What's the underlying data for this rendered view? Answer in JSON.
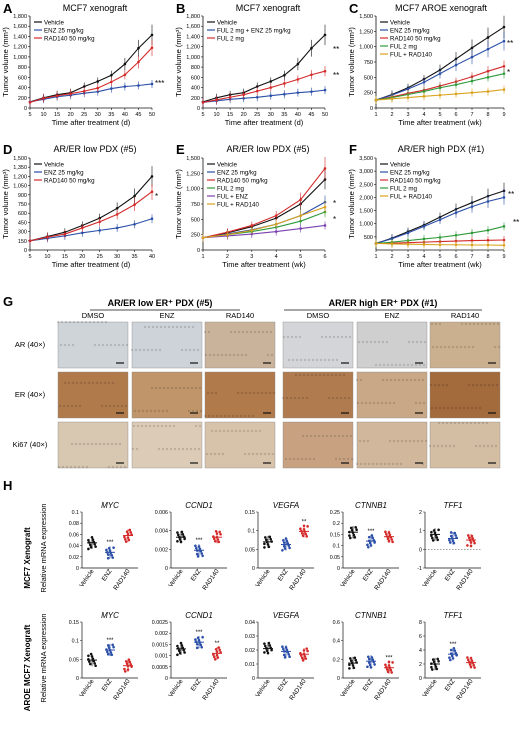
{
  "panels": {
    "A": {
      "letter": "A",
      "title": "MCF7 xenograft",
      "xlabel": "Time after treatment (d)",
      "ylabel": "Tumor volume (mm³)",
      "sig": "***"
    },
    "B": {
      "letter": "B",
      "title": "MCF7 xenograft",
      "xlabel": "Time after treatment (d)",
      "ylabel": "Tumor volume (mm³)",
      "sig_top": "**",
      "sig_bottom": "**"
    },
    "C": {
      "letter": "C",
      "title": "MCF7 AROE xenograft",
      "xlabel": "Time after treatment (wk)",
      "ylabel": "Tumor volume (mm³)",
      "sig_top": "**",
      "sig_mid": "*"
    },
    "D": {
      "letter": "D",
      "title": "AR/ER low PDX (#5)",
      "xlabel": "Time after treatment (d)",
      "ylabel": "Tumor volume (mm³)",
      "sig": "*"
    },
    "E": {
      "letter": "E",
      "title": "AR/ER low PDX (#5)",
      "xlabel": "Time after treatment (wk)",
      "ylabel": "Tumor volume (mm³)",
      "sig_top": "*",
      "sig_bottom": "*"
    },
    "F": {
      "letter": "F",
      "title": "AR/ER high PDX (#1)",
      "xlabel": "Time after treatment (wk)",
      "ylabel": "Tumor volume (mm³)",
      "sig_top": "**",
      "sig_bottom": "**"
    },
    "G": {
      "letter": "G",
      "group_left": "AR/ER low ER⁺ PDX (#5)",
      "group_right": "AR/ER high ER⁺ PDX (#1)",
      "columns": [
        "DMSO",
        "ENZ",
        "RAD140",
        "DMSO",
        "ENZ",
        "RAD140"
      ],
      "rows": [
        "AR (40×)",
        "ER (40×)",
        "Ki67 (40×)"
      ]
    },
    "H": {
      "letter": "H",
      "row_top": "MCF7 Xenograft",
      "row_bottom": "AROE MCF7 Xenograft",
      "ylabel": "Relative mRNA expression",
      "groups": [
        "Vehicle",
        "ENZ",
        "RAD140"
      ]
    }
  },
  "chart_data": [
    {
      "id": "A",
      "type": "line",
      "title": "MCF7 xenograft",
      "xlabel": "Time after treatment (d)",
      "ylabel": "Tumor volume (mm³)",
      "x": [
        5,
        10,
        15,
        20,
        25,
        30,
        35,
        40,
        45,
        50
      ],
      "xlim": [
        5,
        50
      ],
      "ylim": [
        0,
        1800
      ],
      "yticks": [
        0,
        200,
        400,
        600,
        800,
        1000,
        1200,
        1400,
        1600,
        1800
      ],
      "series": [
        {
          "name": "Vehicle",
          "color": "#111111",
          "values": [
            120,
            200,
            260,
            300,
            420,
            520,
            640,
            860,
            1170,
            1430
          ]
        },
        {
          "name": "ENZ 25 mg/kg",
          "color": "#2b4fa8",
          "values": [
            120,
            170,
            220,
            250,
            290,
            320,
            380,
            420,
            440,
            470
          ]
        },
        {
          "name": "RAD140 50 mg/kg",
          "color": "#d42a2a",
          "values": [
            110,
            190,
            240,
            280,
            330,
            390,
            510,
            650,
            900,
            1180
          ]
        }
      ]
    },
    {
      "id": "B",
      "type": "line",
      "title": "MCF7 xenograft",
      "xlabel": "Time after treatment (d)",
      "ylabel": "Tumor volume (mm³)",
      "x": [
        5,
        10,
        15,
        20,
        25,
        30,
        35,
        40,
        45,
        50
      ],
      "xlim": [
        5,
        50
      ],
      "ylim": [
        0,
        1800
      ],
      "yticks": [
        0,
        200,
        400,
        600,
        800,
        1000,
        1200,
        1400,
        1600,
        1800
      ],
      "series": [
        {
          "name": "Vehicle",
          "color": "#111111",
          "values": [
            120,
            200,
            260,
            300,
            420,
            520,
            640,
            860,
            1170,
            1430
          ]
        },
        {
          "name": "FUL 2 mg + ENZ 25 mg/kg",
          "color": "#2b4fa8",
          "values": [
            110,
            140,
            170,
            190,
            210,
            240,
            270,
            300,
            320,
            350
          ]
        },
        {
          "name": "FUL 2 mg",
          "color": "#d42a2a",
          "values": [
            110,
            160,
            210,
            260,
            330,
            400,
            480,
            560,
            650,
            720
          ]
        }
      ]
    },
    {
      "id": "C",
      "type": "line",
      "title": "MCF7 AROE xenograft",
      "xlabel": "Time after treatment (wk)",
      "ylabel": "Tumor volume (mm³)",
      "x": [
        1,
        2,
        3,
        4,
        5,
        6,
        7,
        8,
        9
      ],
      "xlim": [
        1,
        9
      ],
      "ylim": [
        0,
        1500
      ],
      "yticks": [
        0,
        250,
        500,
        750,
        1000,
        1250,
        1500
      ],
      "series": [
        {
          "name": "Vehicle",
          "color": "#111111",
          "values": [
            130,
            220,
            330,
            470,
            620,
            800,
            980,
            1150,
            1320
          ]
        },
        {
          "name": "ENZ 25 mg/kg",
          "color": "#2b4fa8",
          "values": [
            130,
            210,
            310,
            420,
            560,
            700,
            830,
            960,
            1090
          ]
        },
        {
          "name": "RAD140 50 mg/kg",
          "color": "#d42a2a",
          "values": [
            130,
            180,
            240,
            290,
            360,
            430,
            510,
            600,
            680
          ]
        },
        {
          "name": "FUL 2 mg",
          "color": "#2e9a3a",
          "values": [
            130,
            170,
            220,
            270,
            330,
            380,
            440,
            500,
            560
          ]
        },
        {
          "name": "FUL + RAD140",
          "color": "#d9a21b",
          "values": [
            130,
            150,
            170,
            190,
            210,
            230,
            250,
            270,
            300
          ]
        }
      ]
    },
    {
      "id": "D",
      "type": "line",
      "title": "AR/ER low PDX (#5)",
      "xlabel": "Time after treatment (d)",
      "ylabel": "Tumor volume (mm³)",
      "x": [
        5,
        10,
        15,
        20,
        25,
        30,
        35,
        40
      ],
      "xlim": [
        5,
        40
      ],
      "ylim": [
        0,
        1500
      ],
      "yticks": [
        0,
        150,
        300,
        450,
        600,
        750,
        900,
        1050,
        1200,
        1350,
        1500
      ],
      "series": [
        {
          "name": "Vehicle",
          "color": "#111111",
          "values": [
            150,
            220,
            290,
            400,
            520,
            680,
            880,
            1200
          ]
        },
        {
          "name": "ENZ 25 mg/kg",
          "color": "#2b4fa8",
          "values": [
            150,
            190,
            230,
            280,
            320,
            360,
            420,
            510
          ]
        },
        {
          "name": "RAD140 50 mg/kg",
          "color": "#d42a2a",
          "values": [
            150,
            210,
            260,
            360,
            460,
            580,
            740,
            950
          ]
        }
      ]
    },
    {
      "id": "E",
      "type": "line",
      "title": "AR/ER low PDX (#5)",
      "xlabel": "Time after treatment (wk)",
      "ylabel": "Tumor volume (mm³)",
      "x": [
        1,
        2,
        3,
        4,
        5,
        6
      ],
      "xlim": [
        1,
        6
      ],
      "ylim": [
        0,
        1500
      ],
      "yticks": [
        0,
        250,
        500,
        750,
        1000,
        1250,
        1500
      ],
      "series": [
        {
          "name": "Vehicle",
          "color": "#111111",
          "values": [
            200,
            280,
            380,
            520,
            750,
            1150
          ]
        },
        {
          "name": "ENZ 25 mg/kg",
          "color": "#2b4fa8",
          "values": [
            200,
            260,
            330,
            420,
            560,
            780
          ]
        },
        {
          "name": "RAD140 50 mg/kg",
          "color": "#d42a2a",
          "values": [
            200,
            290,
            400,
            560,
            820,
            1330
          ]
        },
        {
          "name": "FUL 2 mg",
          "color": "#2e9a3a",
          "values": [
            200,
            250,
            300,
            370,
            470,
            620
          ]
        },
        {
          "name": "FUL + ENZ",
          "color": "#7a3fb0",
          "values": [
            200,
            230,
            260,
            300,
            350,
            400
          ]
        },
        {
          "name": "FUL + RAD140",
          "color": "#d9a21b",
          "values": [
            200,
            250,
            320,
            420,
            560,
            700
          ]
        }
      ]
    },
    {
      "id": "F",
      "type": "line",
      "title": "AR/ER high PDX (#1)",
      "xlabel": "Time after treatment (wk)",
      "ylabel": "Tumor volume (mm³)",
      "x": [
        1,
        2,
        3,
        4,
        5,
        6,
        7,
        8,
        9
      ],
      "xlim": [
        1,
        9
      ],
      "ylim": [
        0,
        3500
      ],
      "yticks": [
        500,
        1000,
        1500,
        2000,
        2500,
        3000,
        3500
      ],
      "series": [
        {
          "name": "Vehicle",
          "color": "#111111",
          "values": [
            250,
            450,
            700,
            950,
            1250,
            1550,
            1800,
            2050,
            2250
          ]
        },
        {
          "name": "ENZ 25 mg/kg",
          "color": "#2b4fa8",
          "values": [
            250,
            430,
            650,
            900,
            1150,
            1420,
            1650,
            1850,
            2000
          ]
        },
        {
          "name": "RAD140 50 mg/kg",
          "color": "#d42a2a",
          "values": [
            250,
            260,
            280,
            300,
            320,
            340,
            360,
            370,
            380
          ]
        },
        {
          "name": "FUL 2 mg",
          "color": "#2e9a3a",
          "values": [
            250,
            300,
            360,
            420,
            480,
            560,
            650,
            750,
            900
          ]
        },
        {
          "name": "FUL + RAD140",
          "color": "#d9a21b",
          "values": [
            250,
            230,
            220,
            210,
            200,
            200,
            190,
            190,
            180
          ]
        }
      ]
    },
    {
      "id": "H1",
      "type": "scatter",
      "title": "MYC",
      "ylim": [
        0,
        0.1
      ],
      "yticks": [
        0,
        0.02,
        0.04,
        0.06,
        0.08,
        0.1
      ],
      "categories": [
        "Vehicle",
        "ENZ",
        "RAD140"
      ],
      "means": [
        0.045,
        0.028,
        0.058
      ],
      "sig": [
        "",
        "***",
        ""
      ]
    },
    {
      "id": "H2",
      "type": "scatter",
      "title": "CCND1",
      "ylim": [
        0,
        0.006
      ],
      "yticks": [
        0,
        0.002,
        0.004,
        0.006
      ],
      "categories": [
        "Vehicle",
        "ENZ",
        "RAD140"
      ],
      "means": [
        0.0033,
        0.0019,
        0.0033
      ],
      "sig": [
        "",
        "***",
        ""
      ]
    },
    {
      "id": "H3",
      "type": "scatter",
      "title": "VEGFA",
      "ylim": [
        0,
        0.15
      ],
      "yticks": [
        0,
        0.05,
        0.1,
        0.15
      ],
      "categories": [
        "Vehicle",
        "ENZ",
        "RAD140"
      ],
      "means": [
        0.07,
        0.063,
        0.098
      ],
      "sig": [
        "",
        "",
        "**"
      ]
    },
    {
      "id": "H4",
      "type": "scatter",
      "title": "CTNNB1",
      "ylim": [
        0,
        0.25
      ],
      "yticks": [
        0,
        0.05,
        0.1,
        0.15,
        0.2,
        0.25
      ],
      "categories": [
        "Vehicle",
        "ENZ",
        "RAD140"
      ],
      "means": [
        0.16,
        0.12,
        0.14
      ],
      "sig": [
        "",
        "***",
        ""
      ]
    },
    {
      "id": "H5",
      "type": "scatter",
      "title": "TFF1",
      "ylim": [
        -1,
        2
      ],
      "yticks": [
        -1,
        0,
        1,
        2
      ],
      "categories": [
        "Vehicle",
        "ENZ",
        "RAD140"
      ],
      "means": [
        0.8,
        0.58,
        0.5
      ],
      "sig": [
        "",
        "",
        ""
      ]
    },
    {
      "id": "H6",
      "type": "scatter",
      "title": "MYC",
      "ylim": [
        0,
        0.15
      ],
      "yticks": [
        0,
        0.05,
        0.1,
        0.15
      ],
      "categories": [
        "Vehicle",
        "ENZ",
        "RAD140"
      ],
      "means": [
        0.048,
        0.075,
        0.033
      ],
      "sig": [
        "",
        "***",
        ""
      ]
    },
    {
      "id": "H7",
      "type": "scatter",
      "title": "CCND1",
      "ylim": [
        0,
        0.0025
      ],
      "yticks": [
        0,
        0.0005,
        0.001,
        0.0015,
        0.002,
        0.0025
      ],
      "categories": [
        "Vehicle",
        "ENZ",
        "RAD140"
      ],
      "means": [
        0.0013,
        0.0016,
        0.0011
      ],
      "sig": [
        "",
        "***",
        "**"
      ]
    },
    {
      "id": "H8",
      "type": "scatter",
      "title": "VEGFA",
      "ylim": [
        0,
        0.04
      ],
      "yticks": [
        0,
        0.01,
        0.02,
        0.03,
        0.04
      ],
      "categories": [
        "Vehicle",
        "ENZ",
        "RAD140"
      ],
      "means": [
        0.021,
        0.019,
        0.017
      ],
      "sig": [
        "",
        "",
        ""
      ]
    },
    {
      "id": "H9",
      "type": "scatter",
      "title": "CTNNB1",
      "ylim": [
        0,
        0.6
      ],
      "yticks": [
        0,
        0.2,
        0.4,
        0.6
      ],
      "categories": [
        "Vehicle",
        "ENZ",
        "RAD140"
      ],
      "means": [
        0.16,
        0.18,
        0.11
      ],
      "sig": [
        "",
        "",
        "***"
      ]
    },
    {
      "id": "H10",
      "type": "scatter",
      "title": "TFF1",
      "ylim": [
        0,
        8
      ],
      "yticks": [
        0,
        2,
        4,
        6,
        8
      ],
      "categories": [
        "Vehicle",
        "ENZ",
        "RAD140"
      ],
      "means": [
        2.0,
        3.4,
        2.2
      ],
      "sig": [
        "",
        "***",
        ""
      ]
    }
  ],
  "ihc_colors": {
    "AR": [
      "#cfd4d9",
      "#cdd3d8",
      "#c9b39a",
      "#d3d5d8",
      "#cfcfcf",
      "#cbb08f"
    ],
    "ER": [
      "#b07a4b",
      "#c0956a",
      "#b07a4a",
      "#b07b4f",
      "#c9a887",
      "#a36a3c"
    ],
    "Ki67": [
      "#d8c7b1",
      "#dcccb7",
      "#d7c3aa",
      "#c8a280",
      "#d1b79b",
      "#d4bea3"
    ]
  }
}
